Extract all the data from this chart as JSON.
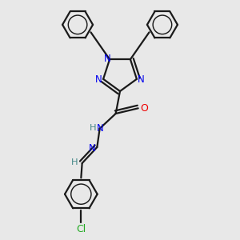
{
  "bg_color": "#e8e8e8",
  "bond_color": "#1a1a1a",
  "nitrogen_color": "#0000ee",
  "oxygen_color": "#ee0000",
  "chlorine_color": "#22aa22",
  "hydrogen_color": "#448888",
  "line_width": 1.6,
  "fig_size": [
    3.0,
    3.0
  ],
  "dpi": 100,
  "xlim": [
    -1.6,
    1.6
  ],
  "ylim": [
    -2.6,
    1.9
  ]
}
